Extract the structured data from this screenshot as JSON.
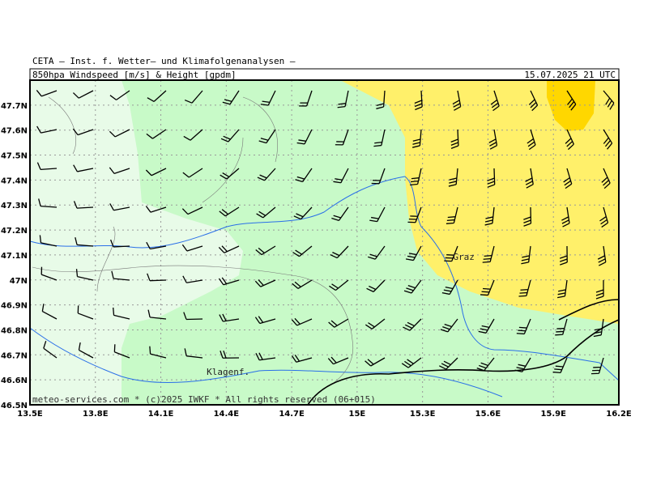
{
  "header": {
    "institute": "CETA – Inst. f. Wetter– und Klimafolgenanalysen –",
    "title": "850hpa_Windspeed_[m/s]_&_Height_[gpdm]",
    "date": "15.07.2025 21 UTC"
  },
  "map": {
    "lon_range": [
      13.5,
      16.2
    ],
    "lat_range": [
      46.5,
      47.8
    ],
    "lon_ticks": [
      {
        "value": 13.5,
        "label": "13.5E"
      },
      {
        "value": 13.8,
        "label": "13.8E"
      },
      {
        "value": 14.1,
        "label": "14.1E"
      },
      {
        "value": 14.4,
        "label": "14.4E"
      },
      {
        "value": 14.7,
        "label": "14.7E"
      },
      {
        "value": 15,
        "label": "15E"
      },
      {
        "value": 15.3,
        "label": "15.3E"
      },
      {
        "value": 15.6,
        "label": "15.6E"
      },
      {
        "value": 15.9,
        "label": "15.9E"
      },
      {
        "value": 16.2,
        "label": "16.2E"
      }
    ],
    "lat_ticks": [
      {
        "value": 46.5,
        "label": "46.5N"
      },
      {
        "value": 46.6,
        "label": "46.6N"
      },
      {
        "value": 46.7,
        "label": "46.7N"
      },
      {
        "value": 46.8,
        "label": "46.8N"
      },
      {
        "value": 46.9,
        "label": "46.9N"
      },
      {
        "value": 47,
        "label": "47N"
      },
      {
        "value": 47.1,
        "label": "47.1N"
      },
      {
        "value": 47.2,
        "label": "47.2N"
      },
      {
        "value": 47.3,
        "label": "47.3N"
      },
      {
        "value": 47.4,
        "label": "47.4N"
      },
      {
        "value": 47.5,
        "label": "47.5N"
      },
      {
        "value": 47.6,
        "label": "47.6N"
      },
      {
        "value": 47.7,
        "label": "47.7N"
      }
    ],
    "places": [
      {
        "label": "Graz",
        "lon": 15.44,
        "lat": 47.08
      },
      {
        "label": "Klagenf.",
        "lon": 14.31,
        "lat": 46.62
      }
    ]
  },
  "footer": "meteo-services.com * (c)2025 IWKF * All rights reserved (06+015)"
}
